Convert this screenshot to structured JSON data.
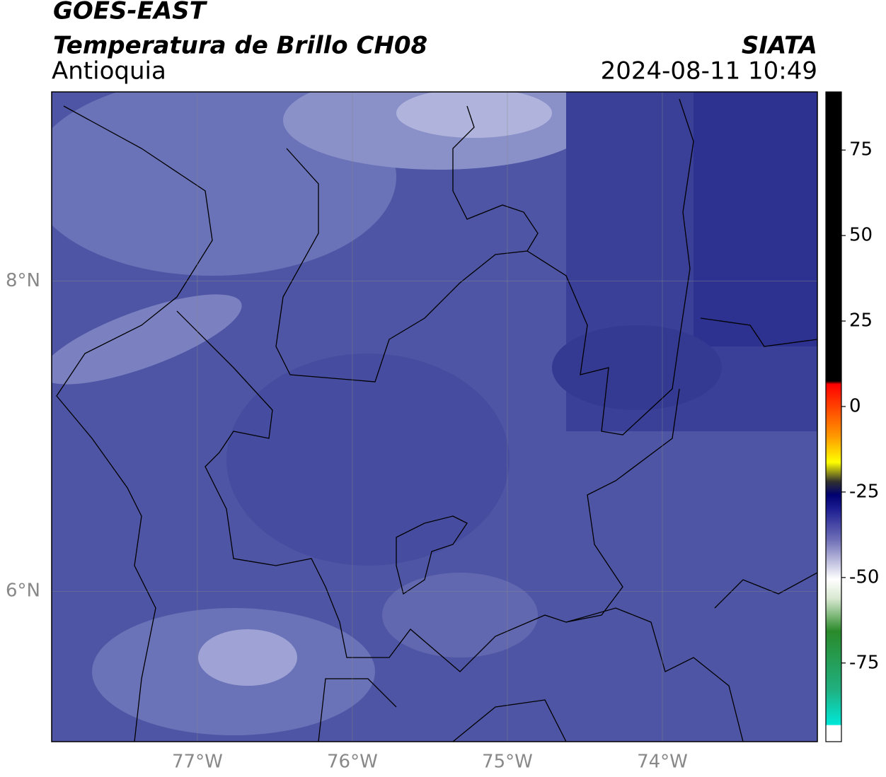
{
  "header": {
    "title": "GOES-EAST",
    "subtitle": "Temperatura de Brillo CH08",
    "region": "Antioquia",
    "source": "SIATA",
    "timestamp": "2024-08-11 10:49"
  },
  "map": {
    "xlim": [
      -77.94,
      -73.0
    ],
    "ylim": [
      5.03,
      9.22
    ],
    "xticks": [
      {
        "value": -77,
        "label": "77°W"
      },
      {
        "value": -76,
        "label": "76°W"
      },
      {
        "value": -75,
        "label": "75°W"
      },
      {
        "value": -74,
        "label": "74°W"
      }
    ],
    "yticks": [
      {
        "value": 8,
        "label": "8°N"
      },
      {
        "value": 6,
        "label": "6°N"
      }
    ],
    "grid": true
  },
  "colorbar": {
    "lim": [
      -98,
      92
    ],
    "ticks": [
      75,
      50,
      25,
      0,
      -25,
      -50,
      -75
    ]
  }
}
